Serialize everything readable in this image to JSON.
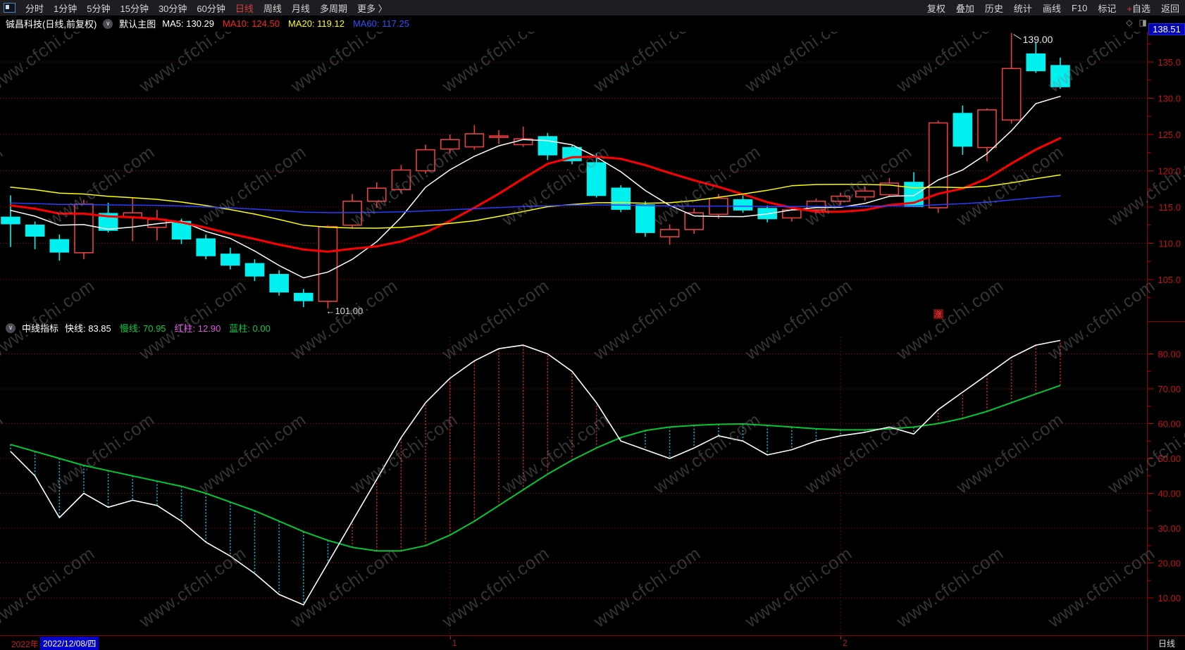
{
  "topbar": {
    "periods": [
      {
        "label": "分时",
        "active": false
      },
      {
        "label": "1分钟",
        "active": false
      },
      {
        "label": "5分钟",
        "active": false
      },
      {
        "label": "15分钟",
        "active": false
      },
      {
        "label": "30分钟",
        "active": false
      },
      {
        "label": "60分钟",
        "active": false
      },
      {
        "label": "日线",
        "active": true
      },
      {
        "label": "周线",
        "active": false
      },
      {
        "label": "月线",
        "active": false
      },
      {
        "label": "多周期",
        "active": false
      },
      {
        "label": "更多 〉",
        "active": false
      }
    ],
    "actions": [
      "复权",
      "叠加",
      "历史",
      "统计",
      "画线",
      "F10",
      "标记",
      "+自选",
      "返回"
    ]
  },
  "titlebar": {
    "symbol": "铖昌科技(日线,前复权)",
    "overlay_label": "默认主图",
    "legend": [
      {
        "label": "MA5:",
        "value": "130.29",
        "color": "#ffffff"
      },
      {
        "label": "MA10:",
        "value": "124.50",
        "color": "#ff2222"
      },
      {
        "label": "MA20:",
        "value": "119.12",
        "color": "#ffff00"
      },
      {
        "label": "MA60:",
        "value": "117.25",
        "color": "#3050ff"
      }
    ],
    "price_badge": "138.51",
    "corner_icons": [
      "◇",
      "◨"
    ]
  },
  "indicator_header": {
    "name": "中线指标",
    "legend": [
      {
        "label": "快线:",
        "value": "83.85",
        "color": "#ffffff"
      },
      {
        "label": "慢线:",
        "value": "70.95",
        "color": "#00cc44"
      },
      {
        "label": "红柱:",
        "value": "12.90",
        "color": "#dd55dd"
      },
      {
        "label": "蓝柱:",
        "value": "0.00",
        "color": "#00cc44"
      }
    ]
  },
  "bottombar": {
    "year": "2022年",
    "date": "2022/12/08/四",
    "period": "日线"
  },
  "watermark": {
    "text": "www.cfchi.com"
  },
  "chart_data": {
    "type": "candlestick+indicator",
    "main": {
      "title": "铖昌科技 日线 前复权",
      "y_ticks": [
        135,
        130,
        125,
        120,
        115,
        110,
        105
      ],
      "ylim": [
        99.6,
        139.4
      ],
      "grid": "dotted-red-horizontal",
      "candles": [
        [
          113.6,
          116.6,
          109.5,
          112.7
        ],
        [
          112.5,
          113.0,
          109.2,
          111.0
        ],
        [
          110.5,
          111.2,
          107.6,
          108.8
        ],
        [
          108.7,
          116.0,
          107.8,
          115.4
        ],
        [
          114.1,
          115.6,
          111.5,
          111.8
        ],
        [
          113.6,
          116.3,
          110.3,
          114.2
        ],
        [
          112.2,
          114.6,
          110.4,
          113.3
        ],
        [
          113.0,
          113.4,
          109.9,
          110.6
        ],
        [
          110.6,
          111.2,
          107.8,
          108.3
        ],
        [
          108.5,
          109.4,
          106.4,
          107.0
        ],
        [
          107.2,
          107.8,
          104.8,
          105.5
        ],
        [
          105.7,
          106.3,
          102.8,
          103.3
        ],
        [
          103.1,
          103.7,
          101.2,
          102.1
        ],
        [
          102.0,
          112.5,
          101.0,
          112.3
        ],
        [
          112.5,
          116.8,
          112.0,
          115.8
        ],
        [
          115.8,
          118.4,
          114.9,
          117.6
        ],
        [
          117.4,
          120.8,
          116.9,
          120.1
        ],
        [
          120.0,
          123.6,
          119.6,
          122.9
        ],
        [
          123.0,
          125.0,
          122.4,
          124.3
        ],
        [
          123.3,
          126.3,
          122.9,
          125.1
        ],
        [
          124.6,
          125.6,
          123.7,
          124.8
        ],
        [
          123.6,
          126.1,
          123.3,
          124.4
        ],
        [
          124.7,
          125.2,
          121.5,
          122.2
        ],
        [
          123.2,
          123.5,
          120.9,
          121.4
        ],
        [
          121.1,
          122.4,
          116.3,
          116.6
        ],
        [
          117.6,
          118.0,
          114.3,
          114.7
        ],
        [
          115.3,
          115.8,
          110.9,
          111.5
        ],
        [
          110.9,
          112.6,
          109.8,
          111.9
        ],
        [
          111.9,
          114.8,
          111.3,
          114.2
        ],
        [
          114.0,
          116.8,
          113.4,
          116.2
        ],
        [
          116.0,
          116.6,
          114.2,
          114.6
        ],
        [
          114.8,
          115.2,
          112.9,
          113.4
        ],
        [
          113.5,
          115.0,
          113.0,
          114.6
        ],
        [
          114.6,
          116.2,
          114.1,
          115.8
        ],
        [
          115.8,
          117.0,
          115.3,
          116.5
        ],
        [
          116.4,
          117.8,
          115.9,
          117.2
        ],
        [
          116.7,
          119.0,
          116.4,
          118.3
        ],
        [
          118.4,
          119.8,
          115.0,
          115.1
        ],
        [
          114.9,
          126.9,
          114.2,
          126.6
        ],
        [
          127.9,
          129.0,
          122.2,
          123.4
        ],
        [
          123.2,
          128.6,
          121.3,
          128.4
        ],
        [
          127.0,
          139.0,
          126.5,
          134.1
        ],
        [
          136.1,
          137.7,
          133.5,
          133.8
        ],
        [
          134.5,
          135.6,
          131.3,
          131.6
        ]
      ],
      "up_color": "#e84040",
      "down_color": "#00f0f0",
      "ma": [
        {
          "name": "MA5",
          "period": 5,
          "seed": 115,
          "color": "#ffffff",
          "width": 1.5
        },
        {
          "name": "MA10",
          "period": 10,
          "seed": 115.5,
          "color": "#ff0000",
          "width": 3
        },
        {
          "name": "MA20",
          "period": 20,
          "seed": 118,
          "color": "#ffff00",
          "width": 1.5
        },
        {
          "name": "MA60",
          "period": 60,
          "seed": 115.6,
          "color": "#2a3cff",
          "width": 1.5
        }
      ],
      "annotations": [
        {
          "type": "low",
          "index": 13,
          "price": 101.0,
          "label": "←101.00"
        },
        {
          "type": "high",
          "index": 41,
          "price": 139.0,
          "label": "139.00"
        },
        {
          "type": "limit-up-flag",
          "index": 38,
          "label": "涨"
        }
      ]
    },
    "indicator": {
      "name": "中线指标",
      "y_ticks": [
        80,
        70,
        60,
        50,
        40,
        30,
        20,
        10
      ],
      "ylim": [
        0,
        85
      ],
      "fast": [
        52,
        45,
        33,
        40,
        36,
        38,
        36.5,
        32,
        26,
        22,
        17,
        11,
        8,
        20,
        32,
        44,
        56,
        66,
        73,
        78,
        81.5,
        82.5,
        80,
        75,
        66,
        55,
        52.5,
        50,
        53,
        56.5,
        55,
        51,
        52.5,
        55,
        56.5,
        57.5,
        59,
        57,
        64,
        69,
        74,
        79,
        82.5,
        83.85
      ],
      "slow": [
        54,
        52,
        50,
        48,
        46.5,
        45,
        43.5,
        42,
        40,
        37.5,
        35,
        32,
        29,
        26.5,
        24.5,
        23.5,
        23.5,
        25,
        28,
        32,
        36.5,
        41,
        45.5,
        49.5,
        53,
        56,
        58,
        59,
        59.5,
        59.8,
        59.9,
        59.5,
        59,
        58.5,
        58.2,
        58.2,
        58.5,
        59,
        60,
        61.5,
        63.5,
        66,
        68.5,
        70.95
      ],
      "fast_color": "#ffffff",
      "slow_color": "#00c832",
      "pos_column_color": "#dd2222",
      "neg_column_color": "#00c0e0",
      "separators": [
        {
          "index": 18,
          "label": "1"
        },
        {
          "index": 34,
          "label": "2"
        }
      ]
    }
  }
}
